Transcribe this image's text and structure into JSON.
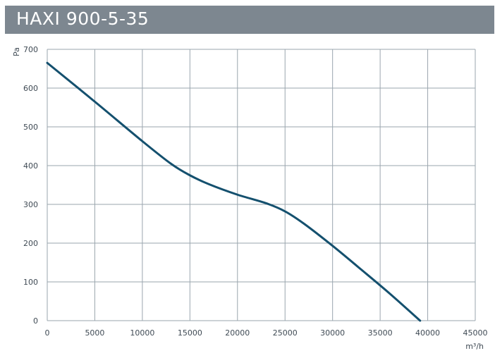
{
  "header": {
    "title": "HAXI 900-5-35"
  },
  "chart_data": {
    "type": "line",
    "title": "HAXI 900-5-35",
    "xlabel": "m³/h",
    "ylabel": "Pa",
    "xlim": [
      0,
      45000
    ],
    "ylim": [
      0,
      700
    ],
    "xticks": [
      0,
      5000,
      10000,
      15000,
      20000,
      25000,
      30000,
      35000,
      40000,
      45000
    ],
    "yticks": [
      0,
      100,
      200,
      300,
      400,
      500,
      600,
      700
    ],
    "grid": true,
    "legend": "none",
    "colors": {
      "curve": "#14506e",
      "grid": "#9aa6ae",
      "header": "#7d8790"
    },
    "series": [
      {
        "x": [
          0,
          5000,
          10000,
          13000,
          15000,
          17000,
          20000,
          23000,
          25000,
          27000,
          30000,
          33000,
          36000,
          39200
        ],
        "y": [
          665,
          565,
          463,
          405,
          375,
          352,
          325,
          303,
          282,
          250,
          193,
          132,
          70,
          0
        ]
      }
    ]
  }
}
